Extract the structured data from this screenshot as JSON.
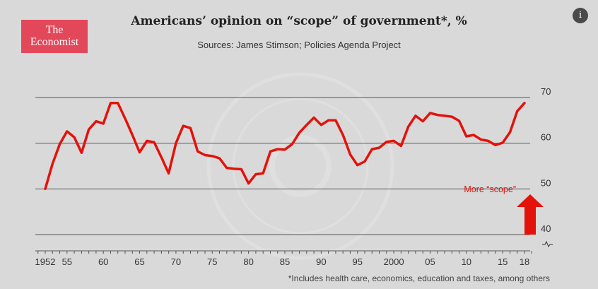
{
  "logo": {
    "line1": "The",
    "line2": "Economist"
  },
  "info_icon": "info-icon",
  "footnote": "*Includes health care, economics, education and taxes, among others",
  "chart_data": {
    "type": "line",
    "title": "Americans’ opinion on “scope” of government*, %",
    "subtitle": "Sources: James Stimson; Policies Agenda Project",
    "xlabel": "",
    "ylabel": "",
    "xlim": [
      1951,
      2020
    ],
    "ylim": [
      40,
      70
    ],
    "y_ticks": [
      40,
      50,
      60,
      70
    ],
    "x_ticks": [
      {
        "x": 1952,
        "label": "1952"
      },
      {
        "x": 1955,
        "label": "55"
      },
      {
        "x": 1960,
        "label": "60"
      },
      {
        "x": 1965,
        "label": "65"
      },
      {
        "x": 1970,
        "label": "70"
      },
      {
        "x": 1975,
        "label": "75"
      },
      {
        "x": 1980,
        "label": "80"
      },
      {
        "x": 1985,
        "label": "85"
      },
      {
        "x": 1990,
        "label": "90"
      },
      {
        "x": 1995,
        "label": "95"
      },
      {
        "x": 2000,
        "label": "2000"
      },
      {
        "x": 2005,
        "label": "05"
      },
      {
        "x": 2010,
        "label": "10"
      },
      {
        "x": 2015,
        "label": "15"
      },
      {
        "x": 2018,
        "label": "18"
      }
    ],
    "grid": true,
    "axis_break": true,
    "annotation": {
      "text": "More “scope”",
      "color": "#e3120b"
    },
    "series": [
      {
        "color": "#e3120b",
        "x": [
          1952,
          1953,
          1954,
          1955,
          1956,
          1957,
          1958,
          1959,
          1960,
          1961,
          1962,
          1963,
          1964,
          1965,
          1966,
          1967,
          1968,
          1969,
          1970,
          1971,
          1972,
          1973,
          1974,
          1975,
          1976,
          1977,
          1978,
          1979,
          1980,
          1981,
          1982,
          1983,
          1984,
          1985,
          1986,
          1987,
          1988,
          1989,
          1990,
          1991,
          1992,
          1993,
          1994,
          1995,
          1996,
          1997,
          1998,
          1999,
          2000,
          2001,
          2002,
          2003,
          2004,
          2005,
          2006,
          2007,
          2008,
          2009,
          2010,
          2011,
          2012,
          2013,
          2014,
          2015,
          2016,
          2017,
          2018
        ],
        "values": [
          50.0,
          55.5,
          59.8,
          62.6,
          61.3,
          57.9,
          63.0,
          64.8,
          64.3,
          68.8,
          68.8,
          65.4,
          61.8,
          58.0,
          60.5,
          60.2,
          56.9,
          53.4,
          60.0,
          63.8,
          63.3,
          58.2,
          57.4,
          57.2,
          56.7,
          54.6,
          54.4,
          54.3,
          51.2,
          53.2,
          53.4,
          58.2,
          58.7,
          58.6,
          59.8,
          62.3,
          64.0,
          65.6,
          64.0,
          65.0,
          65.0,
          61.8,
          57.5,
          55.2,
          56.0,
          58.7,
          59.0,
          60.3,
          60.5,
          59.4,
          63.6,
          66.0,
          64.8,
          66.6,
          66.2,
          66.0,
          65.8,
          64.9,
          61.5,
          61.8,
          60.8,
          60.5,
          59.6,
          60.1,
          62.4,
          67.0,
          68.8
        ]
      }
    ]
  }
}
